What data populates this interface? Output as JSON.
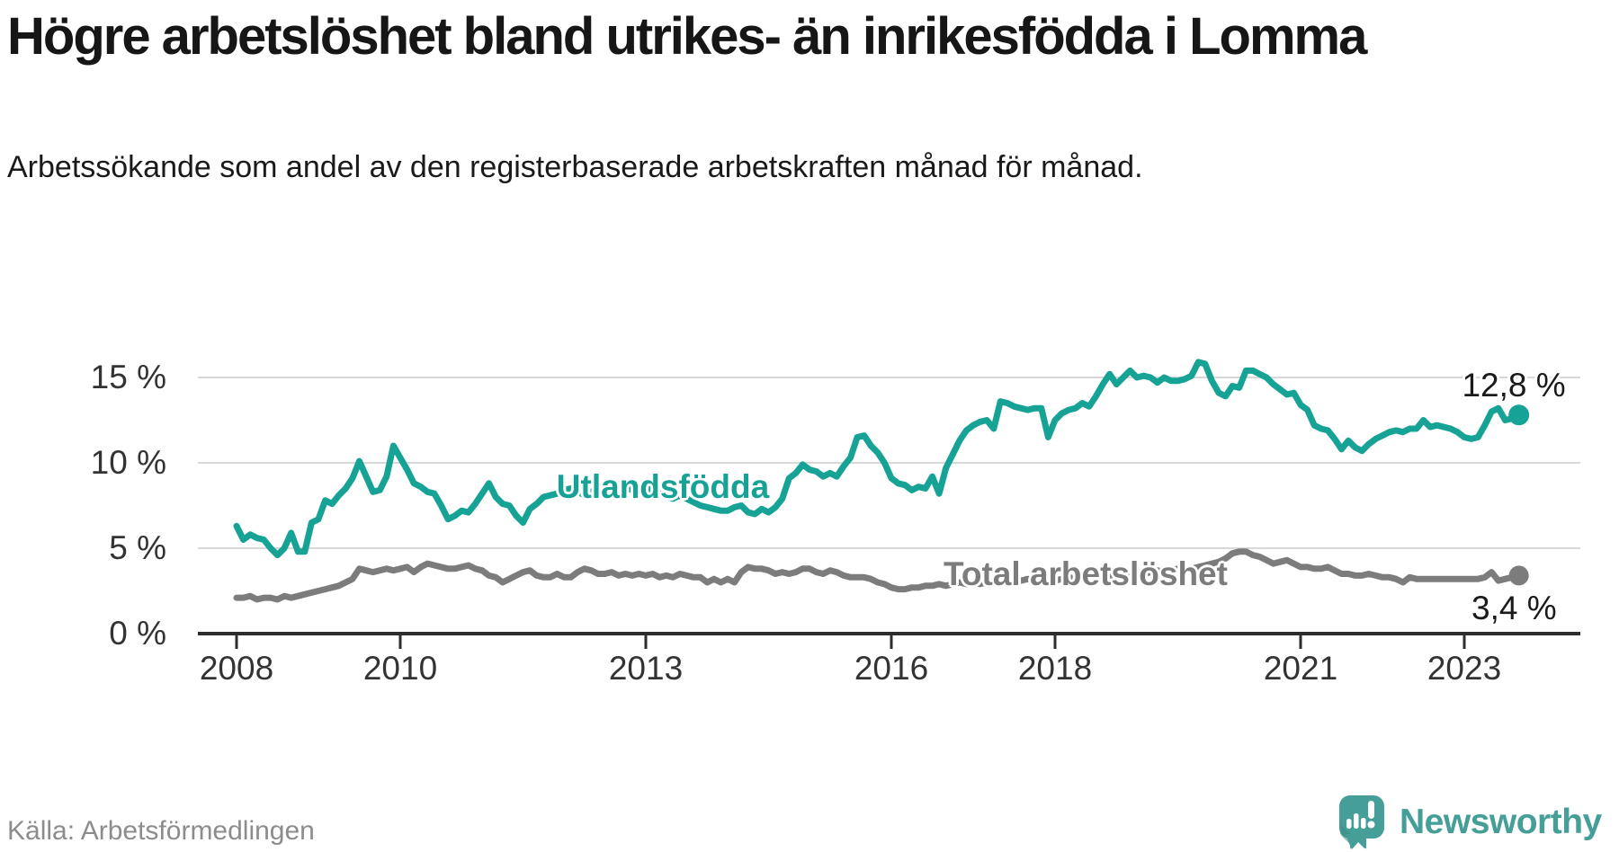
{
  "header": {
    "title": "Högre arbetslöshet bland utrikes- än inrikesfödda i Lomma",
    "subtitle": "Arbetssökande som andel av den registerbaserade arbetskraften månad för månad."
  },
  "footer": {
    "source": "Källa: Arbetsförmedlingen",
    "brand_name": "Newsworthy"
  },
  "colors": {
    "accent_teal": "#17a296",
    "series_gray": "#7c7c7c",
    "brand_teal": "#459e97",
    "axis": "#2d2d2d",
    "grid": "#d8d8d8",
    "tick_text": "#333333",
    "text_dark": "#1a1a1a",
    "muted_text": "#8c8c8c"
  },
  "chart_data": {
    "type": "line",
    "x_start": "2008-01",
    "x_end": "2023-09",
    "x_interval": "monthly",
    "ylim": [
      0,
      16.5
    ],
    "grid": true,
    "legend_position": "inline-labels",
    "y_ticks": [
      {
        "value": 15,
        "label": "15 %"
      },
      {
        "value": 10,
        "label": "10 %"
      },
      {
        "value": 5,
        "label": "5 %"
      },
      {
        "value": 0,
        "label": "0 %"
      }
    ],
    "x_ticks": [
      {
        "year": 2008,
        "label": "2008"
      },
      {
        "year": 2010,
        "label": "2010"
      },
      {
        "year": 2013,
        "label": "2013"
      },
      {
        "year": 2016,
        "label": "2016"
      },
      {
        "year": 2018,
        "label": "2018"
      },
      {
        "year": 2021,
        "label": "2021"
      },
      {
        "year": 2023,
        "label": "2023"
      }
    ],
    "series": [
      {
        "name": "Utlandsfödda",
        "color": "#17a296",
        "end_label": "12,8 %",
        "end_value": 12.8,
        "values": [
          6.3,
          5.5,
          5.8,
          5.6,
          5.5,
          5.0,
          4.6,
          5.0,
          5.9,
          4.8,
          4.8,
          6.5,
          6.7,
          7.8,
          7.6,
          8.1,
          8.5,
          9.1,
          10.1,
          9.2,
          8.3,
          8.4,
          9.2,
          11.0,
          10.3,
          9.6,
          8.8,
          8.6,
          8.3,
          8.2,
          7.5,
          6.7,
          6.9,
          7.2,
          7.1,
          7.6,
          8.2,
          8.8,
          8.0,
          7.6,
          7.5,
          6.9,
          6.5,
          7.3,
          7.6,
          8.0,
          8.1,
          8.2,
          8.4,
          8.5,
          8.3,
          8.1,
          8.3,
          8.5,
          8.3,
          8.1,
          8.4,
          8.6,
          8.4,
          8.2,
          8.4,
          8.5,
          8.2,
          8.0,
          7.9,
          8.1,
          7.9,
          7.7,
          7.5,
          7.4,
          7.3,
          7.2,
          7.2,
          7.4,
          7.5,
          7.1,
          7.0,
          7.3,
          7.1,
          7.4,
          7.9,
          9.1,
          9.4,
          9.9,
          9.6,
          9.5,
          9.2,
          9.4,
          9.2,
          9.8,
          10.3,
          11.5,
          11.6,
          11.0,
          10.6,
          10.0,
          9.1,
          8.8,
          8.7,
          8.4,
          8.6,
          8.5,
          9.2,
          8.2,
          9.7,
          10.5,
          11.3,
          11.9,
          12.2,
          12.4,
          12.5,
          12.0,
          13.6,
          13.5,
          13.3,
          13.2,
          13.1,
          13.2,
          13.2,
          11.5,
          12.5,
          12.9,
          13.1,
          13.2,
          13.5,
          13.3,
          13.9,
          14.6,
          15.2,
          14.6,
          15.0,
          15.4,
          15.0,
          15.1,
          15.0,
          14.7,
          15.0,
          14.8,
          14.8,
          14.9,
          15.1,
          15.9,
          15.8,
          14.8,
          14.1,
          13.9,
          14.5,
          14.4,
          15.4,
          15.4,
          15.2,
          15.0,
          14.6,
          14.3,
          14.0,
          14.1,
          13.4,
          13.1,
          12.2,
          12.0,
          11.9,
          11.4,
          10.8,
          11.3,
          10.9,
          10.7,
          11.1,
          11.4,
          11.6,
          11.8,
          11.9,
          11.8,
          12.0,
          12.0,
          12.5,
          12.1,
          12.2,
          12.1,
          12.0,
          11.8,
          11.5,
          11.4,
          11.5,
          12.2,
          13.0,
          13.2,
          12.5,
          12.6,
          12.8
        ]
      },
      {
        "name": "Total arbetslöshet",
        "color": "#7c7c7c",
        "end_label": "3,4 %",
        "end_value": 3.4,
        "values": [
          2.1,
          2.1,
          2.2,
          2.0,
          2.1,
          2.1,
          2.0,
          2.2,
          2.1,
          2.2,
          2.3,
          2.4,
          2.5,
          2.6,
          2.7,
          2.8,
          3.0,
          3.2,
          3.8,
          3.7,
          3.6,
          3.7,
          3.8,
          3.7,
          3.8,
          3.9,
          3.6,
          3.9,
          4.1,
          4.0,
          3.9,
          3.8,
          3.8,
          3.9,
          4.0,
          3.8,
          3.7,
          3.4,
          3.3,
          3.0,
          3.2,
          3.4,
          3.6,
          3.7,
          3.4,
          3.3,
          3.3,
          3.5,
          3.3,
          3.3,
          3.6,
          3.8,
          3.7,
          3.5,
          3.5,
          3.6,
          3.4,
          3.5,
          3.4,
          3.5,
          3.4,
          3.5,
          3.3,
          3.4,
          3.3,
          3.5,
          3.4,
          3.3,
          3.3,
          3.0,
          3.2,
          3.0,
          3.2,
          3.0,
          3.6,
          3.9,
          3.8,
          3.8,
          3.7,
          3.5,
          3.6,
          3.5,
          3.6,
          3.8,
          3.8,
          3.6,
          3.5,
          3.7,
          3.6,
          3.4,
          3.3,
          3.3,
          3.3,
          3.2,
          3.0,
          2.9,
          2.7,
          2.6,
          2.6,
          2.7,
          2.7,
          2.8,
          2.8,
          2.9,
          2.8,
          2.9,
          3.0,
          2.9,
          3.0,
          2.9,
          3.0,
          3.0,
          3.1,
          3.0,
          3.1,
          3.1,
          3.2,
          3.1,
          3.2,
          3.2,
          3.1,
          3.2,
          3.3,
          3.2,
          3.3,
          3.3,
          3.4,
          3.3,
          3.4,
          3.5,
          3.4,
          3.5,
          3.6,
          3.5,
          3.6,
          3.7,
          3.6,
          3.7,
          3.8,
          3.7,
          3.8,
          3.9,
          4.0,
          4.1,
          4.2,
          4.4,
          4.7,
          4.8,
          4.8,
          4.6,
          4.5,
          4.3,
          4.1,
          4.2,
          4.3,
          4.1,
          3.9,
          3.9,
          3.8,
          3.8,
          3.9,
          3.7,
          3.5,
          3.5,
          3.4,
          3.4,
          3.5,
          3.4,
          3.3,
          3.3,
          3.2,
          3.0,
          3.3,
          3.2,
          3.2,
          3.2,
          3.2,
          3.2,
          3.2,
          3.2,
          3.2,
          3.2,
          3.2,
          3.3,
          3.6,
          3.1,
          3.2,
          3.3,
          3.4
        ]
      }
    ]
  }
}
